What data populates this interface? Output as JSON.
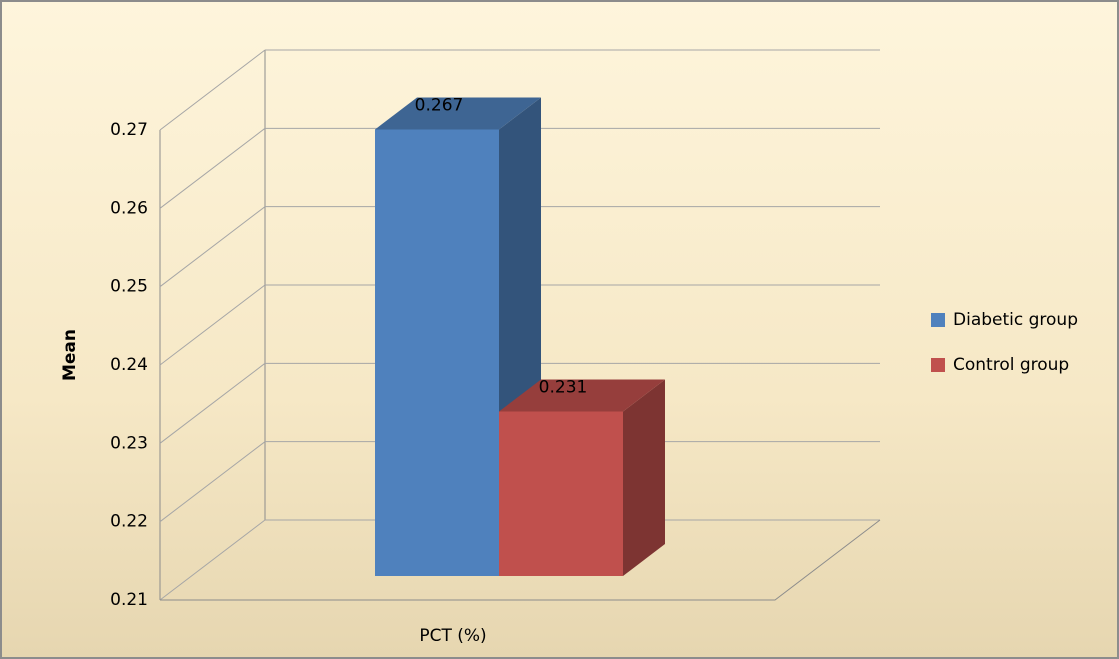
{
  "chart_data": {
    "type": "bar3d",
    "categories": [
      "PCT (%)"
    ],
    "series": [
      {
        "name": "Diabetic group",
        "color": "#4f81bd",
        "values": [
          0.267
        ]
      },
      {
        "name": "Control group",
        "color": "#c0504d",
        "values": [
          0.231
        ]
      }
    ],
    "y_label": "Mean",
    "ylim": [
      0.21,
      0.27
    ],
    "yticks": [
      0.21,
      0.22,
      0.23,
      0.24,
      0.25,
      0.26,
      0.27
    ],
    "grid": true,
    "legend": "right"
  }
}
